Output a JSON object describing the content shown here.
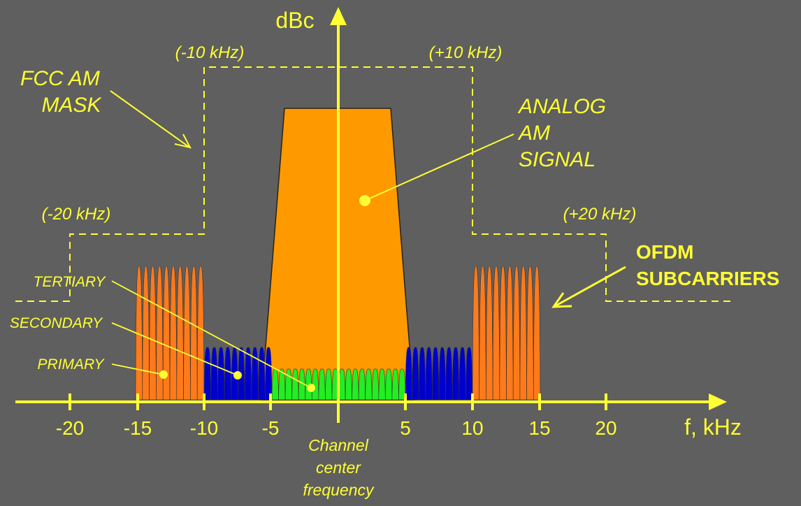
{
  "colors": {
    "background": "#5f5f5f",
    "axis": "#ffff33",
    "analog_signal": "#ff9900",
    "primary_subcarriers": "#ff7a1a",
    "secondary_subcarriers": "#0000cc",
    "tertiary_subcarriers": "#22ee22",
    "mask": "#ffff33"
  },
  "axes": {
    "y_label": "dBc",
    "x_label": "f, kHz",
    "x_ticks": [
      "-20",
      "-15",
      "-10",
      "-5",
      "5",
      "10",
      "15",
      "20"
    ]
  },
  "mask": {
    "title_line1": "FCC AM",
    "title_line2": "MASK",
    "label_minus10": "(-10 kHz)",
    "label_plus10": "(+10 kHz)",
    "label_minus20": "(-20 kHz)",
    "label_plus20": "(+20 kHz)"
  },
  "analog": {
    "line1": "ANALOG",
    "line2": "AM",
    "line3": "SIGNAL"
  },
  "ofdm": {
    "line1": "OFDM",
    "line2": "SUBCARRIERS"
  },
  "sidebands": {
    "tertiary": "TERTIARY",
    "secondary": "SECONDARY",
    "primary": "PRIMARY"
  },
  "center": {
    "line1": "Channel",
    "line2": "center",
    "line3": "frequency"
  }
}
